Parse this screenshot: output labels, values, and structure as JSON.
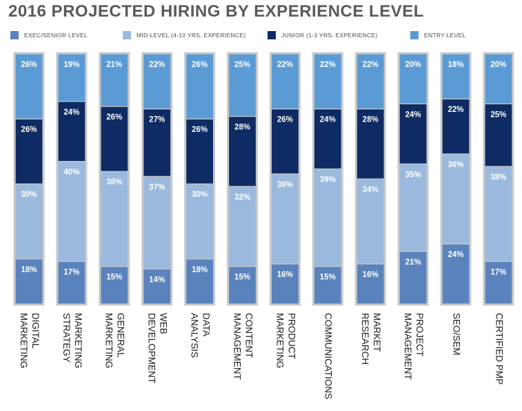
{
  "chart_data": {
    "type": "bar",
    "stacked": true,
    "percent": true,
    "title": "2016 PROJECTED HIRING BY EXPERIENCE LEVEL",
    "categories": [
      [
        "DIGITAL",
        "MARKETING"
      ],
      [
        "MARKETING",
        "STRATEGY"
      ],
      [
        "GENERAL",
        "MARKETING"
      ],
      [
        "WEB",
        "DEVELOPMENT"
      ],
      [
        "DATA",
        "ANALYSIS"
      ],
      [
        "CONTENT",
        "MANAGEMENT"
      ],
      [
        "PRODUCT",
        "MARKETING"
      ],
      [
        "COMMUNICATIONS"
      ],
      [
        "MARKET",
        "RESEARCH"
      ],
      [
        "PROJECT",
        "MANAGEMENT"
      ],
      [
        "SEO/SEM"
      ],
      [
        "CERTIFIED PMP"
      ]
    ],
    "series": [
      {
        "name": "EXEC/SENIOR LEVEL",
        "color": "#5a83bd",
        "label_color": "#ffffff",
        "values": [
          18,
          17,
          15,
          14,
          18,
          15,
          16,
          15,
          16,
          21,
          24,
          17
        ]
      },
      {
        "name": "MID-LEVEL (4-10 YRS. EXPERIENCE)",
        "color": "#9ab9dd",
        "label_color": "#ffffff",
        "values": [
          30,
          40,
          38,
          37,
          30,
          32,
          36,
          39,
          34,
          35,
          36,
          38
        ]
      },
      {
        "name": "JUNIOR (1-3 YRS. EXPERIENCE)",
        "color": "#0f2b63",
        "label_color": "#ffffff",
        "values": [
          26,
          24,
          26,
          27,
          26,
          28,
          26,
          24,
          28,
          24,
          22,
          25
        ]
      },
      {
        "name": "ENTRY-LEVEL",
        "color": "#5b9bd5",
        "label_color": "#ffffff",
        "values": [
          26,
          19,
          21,
          22,
          26,
          25,
          22,
          22,
          22,
          20,
          18,
          20
        ]
      }
    ],
    "value_suffix": "%",
    "ylim": [
      0,
      100
    ],
    "legend_position": "top",
    "grid": false
  }
}
